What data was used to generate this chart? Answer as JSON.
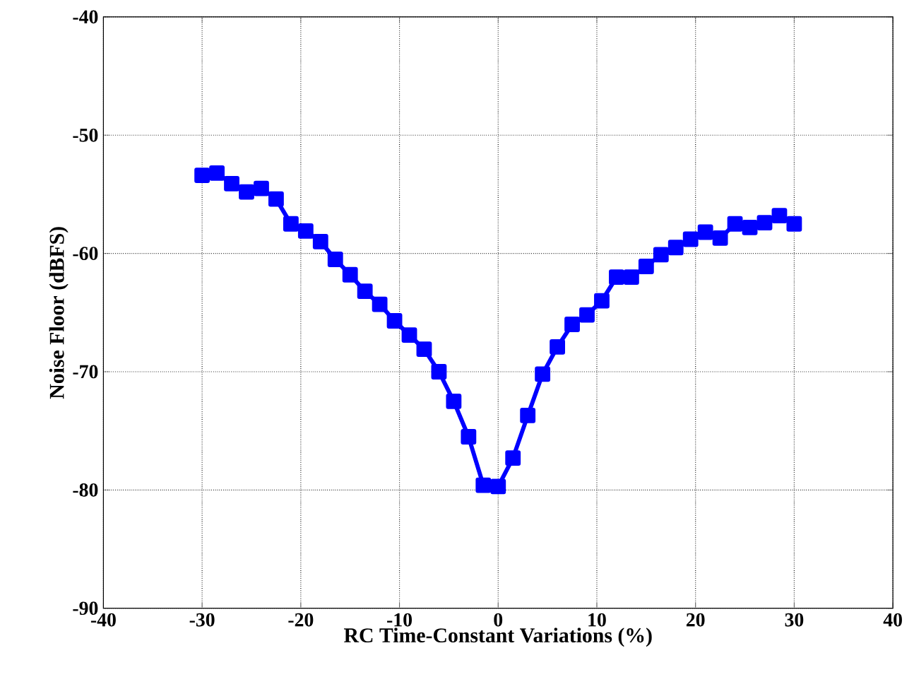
{
  "chart_data": {
    "type": "line",
    "xlabel": "RC Time-Constant Variations (%)",
    "ylabel": "Noise Floor (dBFS)",
    "x": [
      -30,
      -28.5,
      -27,
      -25.5,
      -24,
      -22.5,
      -21,
      -19.5,
      -18,
      -16.5,
      -15,
      -13.5,
      -12,
      -10.5,
      -9,
      -7.5,
      -6,
      -4.5,
      -3,
      -1.5,
      0,
      1.5,
      3,
      4.5,
      6,
      7.5,
      9,
      10.5,
      12,
      13.5,
      15,
      16.5,
      18,
      19.5,
      21,
      22.5,
      24,
      25.5,
      27,
      28.5,
      30
    ],
    "series": [
      {
        "color": "#0000ff",
        "values": [
          -53.4,
          -53.2,
          -54.1,
          -54.8,
          -54.5,
          -55.4,
          -57.5,
          -58.1,
          -59.0,
          -60.5,
          -61.8,
          -63.2,
          -64.3,
          -65.7,
          -66.9,
          -68.1,
          -70.0,
          -72.5,
          -75.5,
          -79.6,
          -79.7,
          -77.3,
          -73.7,
          -70.2,
          -67.9,
          -66.0,
          -65.2,
          -64.0,
          -62.0,
          -62.0,
          -61.1,
          -60.1,
          -59.5,
          -58.8,
          -58.2,
          -58.7,
          -57.5,
          -57.8,
          -57.4,
          -56.8,
          -57.5
        ]
      }
    ],
    "xlim": [
      -40,
      40
    ],
    "ylim": [
      -90,
      -40
    ],
    "xticks": [
      -40,
      -30,
      -20,
      -10,
      0,
      10,
      20,
      30,
      40
    ],
    "yticks": [
      -90,
      -80,
      -70,
      -60,
      -50,
      -40
    ],
    "grid": true,
    "marker": "square",
    "line_style": "solid"
  }
}
